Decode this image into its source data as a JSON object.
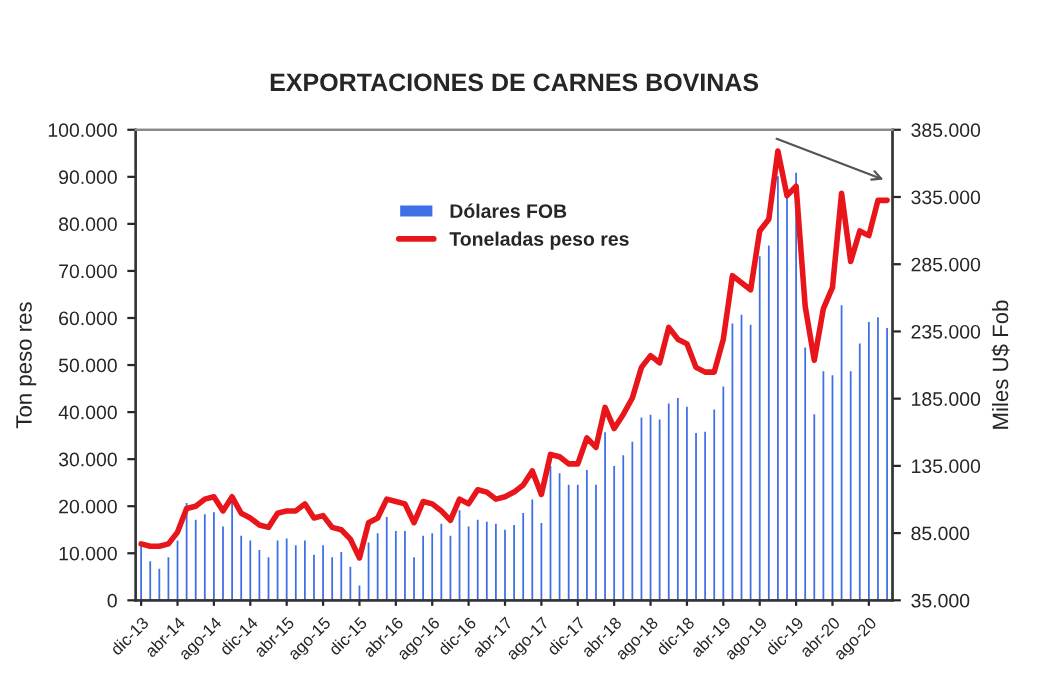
{
  "chart_data": {
    "type": "bar",
    "title": "EXPORTACIONES DE CARNES BOVINAS",
    "ylabel": "Ton peso res",
    "y2label": "Miles U$ Fob",
    "categories": [
      "dic-13",
      null,
      null,
      null,
      "abr-14",
      null,
      null,
      null,
      "ago-14",
      null,
      null,
      null,
      "dic-14",
      null,
      null,
      null,
      "abr-15",
      null,
      null,
      null,
      "ago-15",
      null,
      null,
      null,
      "dic-15",
      null,
      null,
      null,
      "abr-16",
      null,
      null,
      null,
      "ago-16",
      null,
      null,
      null,
      "dic-16",
      null,
      null,
      null,
      "abr-17",
      null,
      null,
      null,
      "ago-17",
      null,
      null,
      null,
      "dic-17",
      null,
      null,
      null,
      "abr-18",
      null,
      null,
      null,
      "ago-18",
      null,
      null,
      null,
      "dic-18",
      null,
      null,
      null,
      "abr-19",
      null,
      null,
      null,
      "ago-19",
      null,
      null,
      null,
      "dic-19",
      null,
      null,
      null,
      "abr-20",
      null,
      null,
      null,
      "ago-20",
      null,
      null
    ],
    "series": [
      {
        "name": "Dólares FOB",
        "axis": "y2",
        "color": "#3f6fe6",
        "values": [
          77000,
          65000,
          59500,
          68000,
          80500,
          108500,
          96000,
          100000,
          101500,
          91000,
          108500,
          84000,
          80500,
          73500,
          68000,
          80500,
          82000,
          77000,
          80500,
          70000,
          77000,
          68000,
          72000,
          61000,
          47000,
          79000,
          86000,
          98000,
          87500,
          87500,
          68000,
          84000,
          86000,
          93000,
          84000,
          103000,
          91000,
          96000,
          94500,
          93000,
          88500,
          92000,
          101000,
          111000,
          93500,
          136000,
          130500,
          122000,
          122000,
          133000,
          122000,
          161000,
          136000,
          144000,
          154000,
          172000,
          174000,
          170500,
          182500,
          186500,
          180000,
          160500,
          161500,
          178000,
          195000,
          242000,
          248500,
          241000,
          292000,
          300000,
          351500,
          336500,
          354000,
          224000,
          174500,
          206500,
          203500,
          255500,
          206500,
          227000,
          243000,
          246500,
          238500
        ]
      },
      {
        "name": "Toneladas peso res",
        "type": "line",
        "color": "#e8161b",
        "values": [
          12000,
          11500,
          11500,
          12000,
          14500,
          19500,
          20000,
          21500,
          22000,
          19000,
          22000,
          18500,
          17500,
          16000,
          15500,
          18500,
          19000,
          19000,
          20500,
          17500,
          18000,
          15500,
          15000,
          13000,
          9000,
          16500,
          17500,
          21500,
          21000,
          20500,
          16500,
          21000,
          20500,
          19000,
          17000,
          21500,
          20500,
          23500,
          23000,
          21500,
          22000,
          23000,
          24500,
          27500,
          22500,
          31000,
          30500,
          29000,
          29000,
          34500,
          32500,
          41000,
          36500,
          39500,
          43000,
          49500,
          52000,
          50500,
          58000,
          55500,
          54500,
          49500,
          48500,
          48500,
          55500,
          69000,
          67500,
          66000,
          78500,
          81000,
          95500,
          86000,
          88000,
          62500,
          51000,
          62000,
          66500,
          86500,
          72000,
          78500,
          77500,
          85000,
          85000
        ]
      }
    ],
    "ylim": [
      0,
      100000
    ],
    "yticks": [
      {
        "value": 0,
        "label": "0"
      },
      {
        "value": 10000,
        "label": "10.000"
      },
      {
        "value": 20000,
        "label": "20.000"
      },
      {
        "value": 30000,
        "label": "30.000"
      },
      {
        "value": 40000,
        "label": "40.000"
      },
      {
        "value": 50000,
        "label": "50.000"
      },
      {
        "value": 60000,
        "label": "60.000"
      },
      {
        "value": 70000,
        "label": "70.000"
      },
      {
        "value": 80000,
        "label": "80.000"
      },
      {
        "value": 90000,
        "label": "90.000"
      },
      {
        "value": 100000,
        "label": "100.000"
      }
    ],
    "y2lim": [
      35000,
      385000
    ],
    "y2ticks": [
      {
        "value": 35000,
        "label": "35.000"
      },
      {
        "value": 85000,
        "label": "85.000"
      },
      {
        "value": 135000,
        "label": "135.000"
      },
      {
        "value": 185000,
        "label": "185.000"
      },
      {
        "value": 235000,
        "label": "235.000"
      },
      {
        "value": 285000,
        "label": "285.000"
      },
      {
        "value": 335000,
        "label": "335.000"
      },
      {
        "value": 385000,
        "label": "385.000"
      }
    ],
    "legend": "top",
    "grid": false,
    "marker": "none",
    "line_style": "solid"
  }
}
